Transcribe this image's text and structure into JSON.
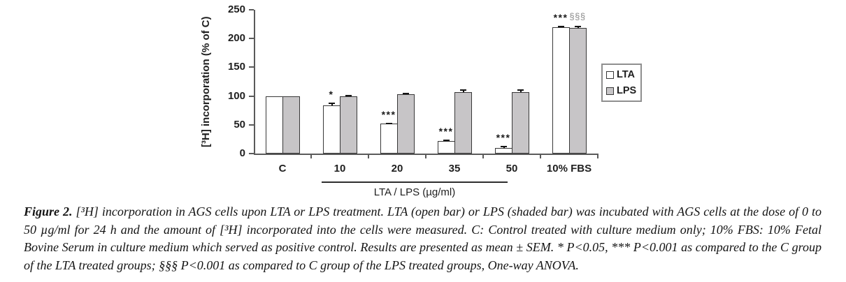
{
  "chart_data": {
    "type": "bar",
    "title": "",
    "ylabel": "[³H] incorporation (% of C)",
    "xlabel": "LTA / LPS (µg/ml)",
    "categories": [
      "C",
      "10",
      "20",
      "35",
      "50",
      "10% FBS"
    ],
    "ylim": [
      0,
      250
    ],
    "yticks": [
      0,
      50,
      100,
      150,
      200,
      250
    ],
    "grid": false,
    "legend_position": "right",
    "series": [
      {
        "name": "LTA",
        "style": "open bar",
        "fill": "#ffffff",
        "values": [
          100,
          84,
          52,
          22,
          10,
          220
        ],
        "errors": [
          0,
          4,
          2,
          2,
          3,
          2
        ],
        "annotations": [
          "",
          "*",
          "***",
          "***",
          "***",
          "***"
        ]
      },
      {
        "name": "LPS",
        "style": "shaded bar",
        "fill": "#c7c5c7",
        "values": [
          100,
          100,
          103,
          107,
          107,
          218
        ],
        "errors": [
          0,
          2,
          3,
          5,
          5,
          4
        ],
        "annotations": [
          "",
          "",
          "",
          "",
          "",
          "§§§"
        ]
      }
    ],
    "dose_underline_categories": [
      "10",
      "20",
      "35",
      "50"
    ],
    "annotation_colors": {
      "star": "#1a1a1a",
      "section": "#8c8c8c"
    }
  },
  "caption": {
    "label": "Figure 2.",
    "text": "[³H] incorporation in AGS cells upon LTA or LPS treatment. LTA (open bar) or LPS (shaded bar) was incubated with AGS cells at the dose of 0 to 50 µg/ml for 24 h and the amount of [³H] incorporated into the cells were measured. C: Control treated with culture medium only; 10% FBS: 10% Fetal Bovine Serum in culture medium which served as positive control. Results are presented as mean ± SEM. * P<0.05, *** P<0.001 as compared to the C group of the LTA treated groups; §§§ P<0.001 as compared to C group of the LPS treated groups, One-way ANOVA."
  }
}
